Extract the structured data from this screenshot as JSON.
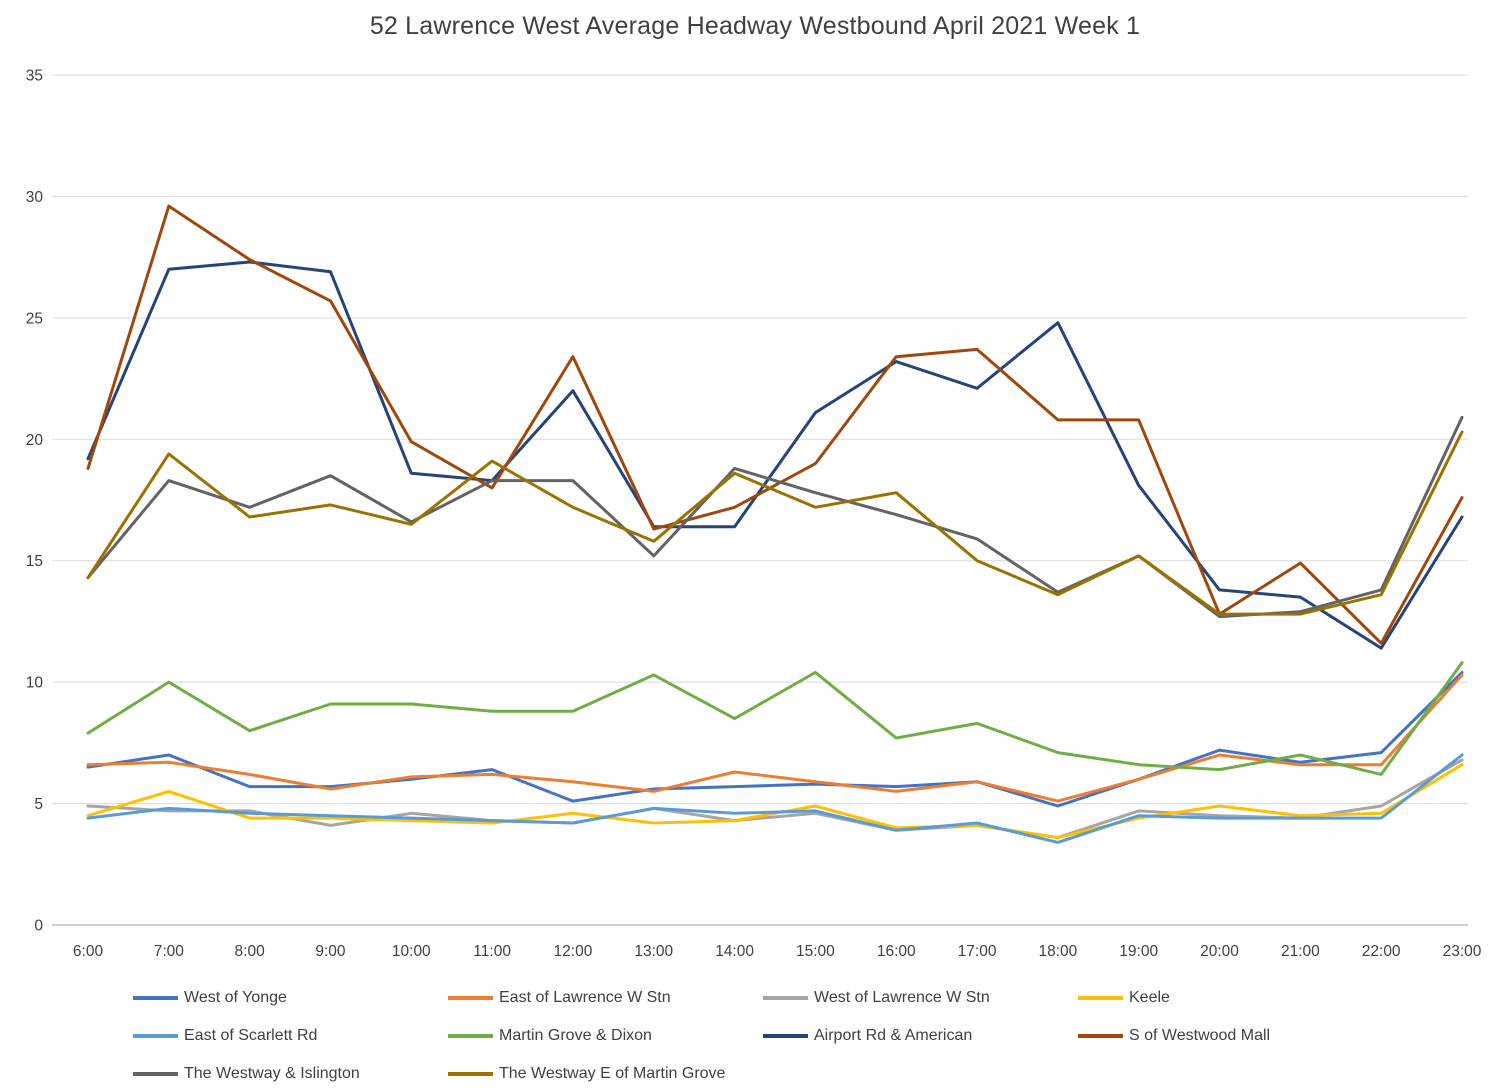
{
  "chart_data": {
    "type": "line",
    "title": "52 Lawrence West  Average Headway Westbound April 2021 Week 1",
    "xlabel": "",
    "ylabel": "",
    "ylim": [
      0,
      35
    ],
    "y_ticks": [
      0,
      5,
      10,
      15,
      20,
      25,
      30,
      35
    ],
    "grid": true,
    "legend_position": "bottom",
    "x_labels": [
      "6:00",
      "7:00",
      "8:00",
      "9:00",
      "10:00",
      "11:00",
      "12:00",
      "13:00",
      "14:00",
      "15:00",
      "16:00",
      "17:00",
      "18:00",
      "19:00",
      "20:00",
      "21:00",
      "22:00",
      "23:00"
    ],
    "series": [
      {
        "name": "West of Yonge",
        "color": "#4472C4",
        "values": [
          6.5,
          7.0,
          5.7,
          5.7,
          6.0,
          6.4,
          5.1,
          5.6,
          5.7,
          5.8,
          5.7,
          5.9,
          4.9,
          6.0,
          7.2,
          6.7,
          7.1,
          10.4
        ]
      },
      {
        "name": "East of Lawrence W Stn",
        "color": "#ED7D31",
        "values": [
          6.6,
          6.7,
          6.2,
          5.6,
          6.1,
          6.2,
          5.9,
          5.5,
          6.3,
          5.9,
          5.5,
          5.9,
          5.1,
          6.0,
          7.0,
          6.6,
          6.6,
          10.3
        ]
      },
      {
        "name": "West of Lawrence W Stn",
        "color": "#A5A5A5",
        "values": [
          4.9,
          4.7,
          4.7,
          4.1,
          4.6,
          4.3,
          4.2,
          4.8,
          4.3,
          4.6,
          3.9,
          4.1,
          3.6,
          4.7,
          4.5,
          4.4,
          4.9,
          6.8
        ]
      },
      {
        "name": "Keele",
        "color": "#FFC000",
        "values": [
          4.5,
          5.5,
          4.4,
          4.4,
          4.3,
          4.2,
          4.6,
          4.2,
          4.3,
          4.9,
          4.0,
          4.1,
          3.6,
          4.4,
          4.9,
          4.5,
          4.6,
          6.6
        ]
      },
      {
        "name": "East of Scarlett Rd",
        "color": "#5B9BD5",
        "values": [
          4.4,
          4.8,
          4.6,
          4.5,
          4.4,
          4.3,
          4.2,
          4.8,
          4.6,
          4.7,
          3.9,
          4.2,
          3.4,
          4.5,
          4.4,
          4.4,
          4.4,
          7.0
        ]
      },
      {
        "name": "Martin Grove & Dixon",
        "color": "#70AD47",
        "values": [
          7.9,
          10.0,
          8.0,
          9.1,
          9.1,
          8.8,
          8.8,
          10.3,
          8.5,
          10.4,
          7.7,
          8.3,
          7.1,
          6.6,
          6.4,
          7.0,
          6.2,
          10.8
        ]
      },
      {
        "name": "Airport Rd & American",
        "color": "#264478",
        "values": [
          19.2,
          27.0,
          27.3,
          26.9,
          18.6,
          18.3,
          22.0,
          16.4,
          16.4,
          21.1,
          23.2,
          22.1,
          24.8,
          18.1,
          13.8,
          13.5,
          11.4,
          16.8
        ]
      },
      {
        "name": "S of Westwood Mall",
        "color": "#9E480E",
        "values": [
          18.8,
          29.6,
          27.4,
          25.7,
          19.9,
          18.0,
          23.4,
          16.3,
          17.2,
          19.0,
          23.4,
          23.7,
          20.8,
          20.8,
          12.8,
          14.9,
          11.6,
          17.6
        ]
      },
      {
        "name": "The Westway & Islington",
        "color": "#636363",
        "values": [
          14.3,
          18.3,
          17.2,
          18.5,
          16.6,
          18.3,
          18.3,
          15.2,
          18.8,
          17.8,
          16.9,
          15.9,
          13.7,
          15.2,
          12.7,
          12.9,
          13.8,
          20.9
        ]
      },
      {
        "name": "The Westway E of Martin Grove",
        "color": "#997300",
        "values": [
          14.3,
          19.4,
          16.8,
          17.3,
          16.5,
          19.1,
          17.2,
          15.8,
          18.6,
          17.2,
          17.8,
          15.0,
          13.6,
          15.2,
          12.8,
          12.8,
          13.6,
          20.3
        ]
      }
    ]
  }
}
